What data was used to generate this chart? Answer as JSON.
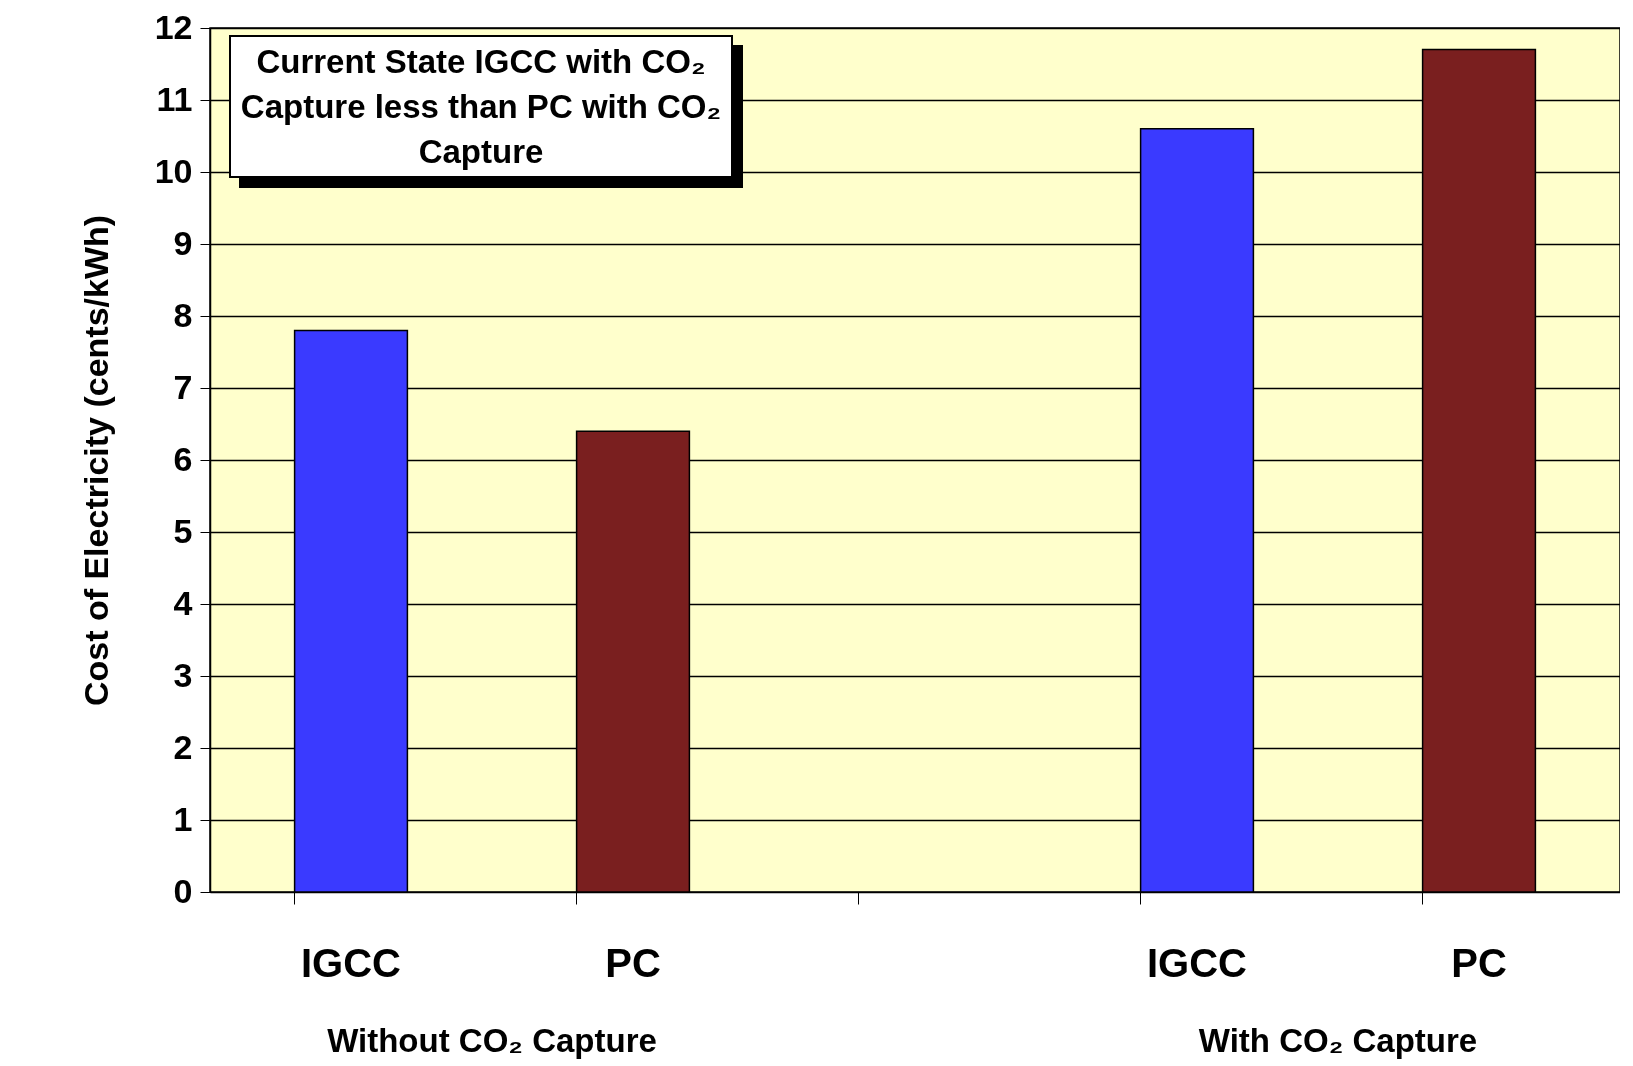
{
  "chart_data": {
    "type": "bar",
    "ylabel": "Cost of Electricity (cents/kWh)",
    "categories": [
      "IGCC",
      "PC",
      null,
      "IGCC",
      "PC"
    ],
    "values": [
      7.8,
      6.4,
      null,
      10.6,
      11.7
    ],
    "colors": [
      "#3a3aff",
      "#7a1f1f",
      null,
      "#3a3aff",
      "#7a1f1f"
    ],
    "ylim": [
      0,
      12
    ],
    "yticks": [
      0,
      1,
      2,
      3,
      4,
      5,
      6,
      7,
      8,
      9,
      10,
      11,
      12
    ],
    "grid": "y",
    "annotations": [
      "Current State IGCC with CO₂ Capture less than PC with CO₂ Capture",
      "Without CO₂ Capture",
      "With CO₂ Capture"
    ]
  }
}
